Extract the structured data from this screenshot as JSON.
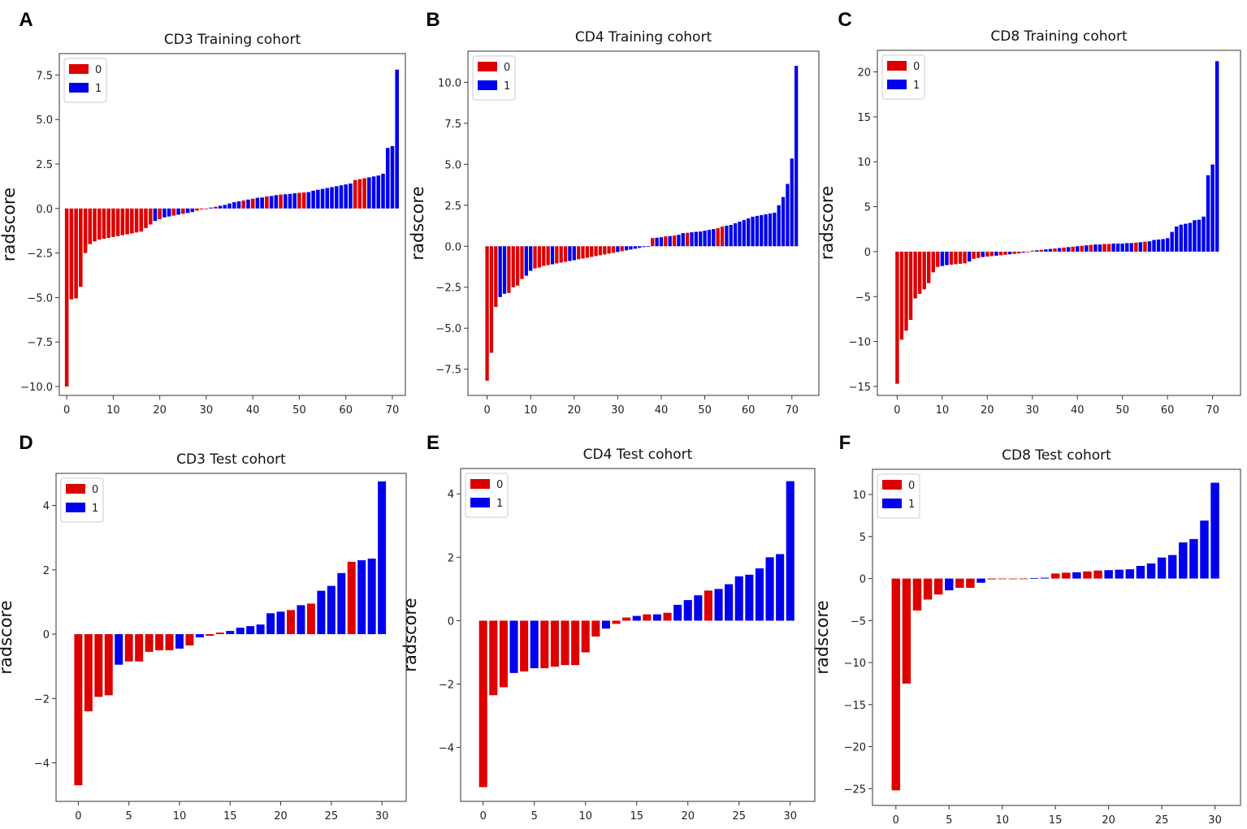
{
  "figure": {
    "colors": {
      "class0": "#dd0000",
      "class1": "#0000ee"
    }
  },
  "chart_data": [
    {
      "panel": "A",
      "type": "bar",
      "title": "CD3 Training cohort",
      "xlabel": "",
      "ylabel": "radscore",
      "ylim": [
        -10.5,
        8.7
      ],
      "xlim": [
        -1.6,
        72.8
      ],
      "yticks": [
        -10.0,
        -7.5,
        -5.0,
        -2.5,
        0.0,
        2.5,
        5.0,
        7.5
      ],
      "ytick_labels": [
        "−10.0",
        "−7.5",
        "−5.0",
        "−2.5",
        "0.0",
        "2.5",
        "5.0",
        "7.5"
      ],
      "xticks": [
        0,
        10,
        20,
        30,
        40,
        50,
        60,
        70
      ],
      "legend": [
        "0",
        "1"
      ],
      "legend_position": "top-left",
      "values": [
        -10.0,
        -5.1,
        -5.05,
        -4.4,
        -2.5,
        -2.0,
        -1.85,
        -1.75,
        -1.7,
        -1.65,
        -1.6,
        -1.55,
        -1.5,
        -1.45,
        -1.4,
        -1.35,
        -1.3,
        -1.1,
        -0.9,
        -0.7,
        -0.6,
        -0.5,
        -0.45,
        -0.4,
        -0.35,
        -0.3,
        -0.25,
        -0.2,
        -0.12,
        -0.05,
        0.0,
        0.05,
        0.1,
        0.15,
        0.2,
        0.28,
        0.35,
        0.4,
        0.45,
        0.5,
        0.55,
        0.6,
        0.62,
        0.68,
        0.7,
        0.75,
        0.78,
        0.8,
        0.82,
        0.85,
        0.88,
        0.9,
        0.92,
        1.0,
        1.05,
        1.1,
        1.15,
        1.2,
        1.25,
        1.3,
        1.35,
        1.4,
        1.6,
        1.65,
        1.7,
        1.75,
        1.8,
        1.85,
        1.95,
        3.4,
        3.5,
        7.8
      ],
      "classes": [
        0,
        0,
        0,
        0,
        0,
        0,
        0,
        0,
        0,
        0,
        0,
        0,
        0,
        0,
        0,
        0,
        0,
        0,
        0,
        1,
        0,
        1,
        1,
        0,
        1,
        0,
        1,
        1,
        0,
        0,
        0,
        1,
        0,
        1,
        1,
        1,
        1,
        1,
        0,
        1,
        0,
        1,
        1,
        0,
        1,
        1,
        0,
        1,
        1,
        1,
        0,
        0,
        1,
        1,
        1,
        1,
        1,
        1,
        1,
        1,
        1,
        1,
        0,
        0,
        0,
        1,
        1,
        1,
        1,
        1,
        1,
        1
      ]
    },
    {
      "panel": "B",
      "type": "bar",
      "title": "CD4 Training cohort",
      "xlabel": "",
      "ylabel": "radscore",
      "ylim": [
        -9.1,
        11.9
      ],
      "xlim": [
        -4.4,
        76.2
      ],
      "yticks": [
        -7.5,
        -5.0,
        -2.5,
        0.0,
        2.5,
        5.0,
        7.5,
        10.0
      ],
      "ytick_labels": [
        "−7.5",
        "−5.0",
        "−2.5",
        "0.0",
        "2.5",
        "5.0",
        "7.5",
        "10.0"
      ],
      "xticks": [
        0,
        10,
        20,
        30,
        40,
        50,
        60,
        70
      ],
      "legend": [
        "0",
        "1"
      ],
      "legend_position": "top-left",
      "values": [
        -8.2,
        -6.5,
        -3.7,
        -3.1,
        -2.9,
        -2.85,
        -2.5,
        -2.4,
        -2.0,
        -1.8,
        -1.5,
        -1.35,
        -1.3,
        -1.2,
        -1.15,
        -1.1,
        -1.05,
        -1.0,
        -0.95,
        -0.9,
        -0.85,
        -0.8,
        -0.75,
        -0.7,
        -0.65,
        -0.6,
        -0.55,
        -0.5,
        -0.45,
        -0.4,
        -0.35,
        -0.3,
        -0.25,
        -0.2,
        -0.15,
        -0.1,
        -0.05,
        0.0,
        0.5,
        0.52,
        0.55,
        0.6,
        0.62,
        0.65,
        0.7,
        0.8,
        0.82,
        0.85,
        0.88,
        0.9,
        0.95,
        1.0,
        1.05,
        1.1,
        1.2,
        1.25,
        1.3,
        1.4,
        1.5,
        1.6,
        1.7,
        1.8,
        1.85,
        1.9,
        1.95,
        2.0,
        2.05,
        2.5,
        3.0,
        3.8,
        5.35,
        11.0
      ],
      "classes": [
        0,
        0,
        0,
        1,
        1,
        0,
        0,
        0,
        0,
        1,
        1,
        0,
        0,
        0,
        0,
        1,
        0,
        0,
        0,
        1,
        1,
        0,
        0,
        0,
        0,
        0,
        0,
        0,
        0,
        0,
        1,
        0,
        1,
        1,
        1,
        1,
        1,
        1,
        0,
        1,
        1,
        0,
        1,
        0,
        1,
        1,
        0,
        1,
        1,
        1,
        1,
        1,
        1,
        0,
        0,
        1,
        1,
        1,
        1,
        1,
        1,
        1,
        1,
        1,
        1,
        1,
        1,
        1,
        1,
        1,
        1,
        1
      ]
    },
    {
      "panel": "C",
      "type": "bar",
      "title": "CD8 Training cohort",
      "xlabel": "",
      "ylabel": "radscore",
      "ylim": [
        -16.0,
        22.4
      ],
      "xlim": [
        -4.4,
        76.2
      ],
      "yticks": [
        -15,
        -10,
        -5,
        0,
        5,
        10,
        15,
        20
      ],
      "ytick_labels": [
        "−15",
        "−10",
        "−5",
        "0",
        "5",
        "10",
        "15",
        "20"
      ],
      "xticks": [
        0,
        10,
        20,
        30,
        40,
        50,
        60,
        70
      ],
      "legend": [
        "0",
        "1"
      ],
      "legend_position": "top-left",
      "values": [
        -14.7,
        -9.8,
        -8.8,
        -7.6,
        -5.2,
        -4.7,
        -4.2,
        -3.5,
        -2.3,
        -1.7,
        -1.6,
        -1.5,
        -1.45,
        -1.4,
        -1.35,
        -1.3,
        -1.1,
        -0.8,
        -0.7,
        -0.6,
        -0.55,
        -0.5,
        -0.45,
        -0.4,
        -0.35,
        -0.3,
        -0.25,
        -0.2,
        -0.1,
        0.0,
        0.1,
        0.15,
        0.2,
        0.25,
        0.3,
        0.35,
        0.4,
        0.45,
        0.5,
        0.55,
        0.6,
        0.65,
        0.7,
        0.75,
        0.8,
        0.8,
        0.85,
        0.85,
        0.9,
        0.9,
        0.9,
        0.95,
        0.95,
        1.0,
        1.05,
        1.1,
        1.15,
        1.3,
        1.35,
        1.4,
        1.5,
        2.2,
        2.8,
        3.0,
        3.1,
        3.2,
        3.5,
        3.55,
        3.9,
        8.5,
        9.7,
        21.2
      ],
      "classes": [
        0,
        0,
        0,
        0,
        0,
        0,
        0,
        0,
        0,
        0,
        1,
        1,
        0,
        0,
        0,
        0,
        1,
        0,
        0,
        1,
        0,
        0,
        1,
        0,
        0,
        1,
        0,
        0,
        1,
        0,
        0,
        1,
        0,
        1,
        1,
        0,
        1,
        0,
        1,
        0,
        1,
        0,
        1,
        0,
        1,
        1,
        0,
        0,
        1,
        1,
        1,
        1,
        1,
        0,
        1,
        0,
        1,
        1,
        1,
        1,
        1,
        1,
        1,
        1,
        1,
        1,
        1,
        1,
        1,
        1,
        1,
        1
      ]
    },
    {
      "panel": "D",
      "type": "bar",
      "title": "CD3 Test cohort",
      "xlabel": "",
      "ylabel": "radscore",
      "ylim": [
        -5.2,
        5.0
      ],
      "xlim": [
        -2.2,
        32.4
      ],
      "yticks": [
        -4,
        -2,
        0,
        2,
        4
      ],
      "ytick_labels": [
        "−4",
        "−2",
        "0",
        "2",
        "4"
      ],
      "xticks": [
        0,
        5,
        10,
        15,
        20,
        25,
        30
      ],
      "legend": [
        "0",
        "1"
      ],
      "legend_position": "top-left",
      "values": [
        -4.7,
        -2.4,
        -1.95,
        -1.9,
        -0.95,
        -0.85,
        -0.85,
        -0.55,
        -0.5,
        -0.5,
        -0.45,
        -0.35,
        -0.1,
        -0.05,
        0.05,
        0.1,
        0.2,
        0.25,
        0.3,
        0.65,
        0.7,
        0.75,
        0.9,
        0.95,
        1.35,
        1.5,
        1.9,
        2.25,
        2.3,
        2.35,
        4.75
      ],
      "classes": [
        0,
        0,
        0,
        0,
        1,
        0,
        0,
        0,
        0,
        0,
        1,
        0,
        1,
        0,
        0,
        1,
        1,
        1,
        1,
        1,
        1,
        0,
        1,
        0,
        1,
        1,
        1,
        0,
        1,
        1,
        1
      ]
    },
    {
      "panel": "E",
      "type": "bar",
      "title": "CD4 Test cohort",
      "xlabel": "",
      "ylabel": "radscore",
      "ylim": [
        -5.7,
        4.8
      ],
      "xlim": [
        -2.2,
        32.4
      ],
      "yticks": [
        -4,
        -2,
        0,
        2,
        4
      ],
      "ytick_labels": [
        "−4",
        "−2",
        "0",
        "2",
        "4"
      ],
      "xticks": [
        0,
        5,
        10,
        15,
        20,
        25,
        30
      ],
      "legend": [
        "0",
        "1"
      ],
      "legend_position": "top-left",
      "values": [
        -5.25,
        -2.35,
        -2.1,
        -1.65,
        -1.6,
        -1.5,
        -1.5,
        -1.45,
        -1.4,
        -1.4,
        -1.0,
        -0.5,
        -0.25,
        -0.1,
        0.1,
        0.15,
        0.2,
        0.2,
        0.25,
        0.5,
        0.65,
        0.8,
        0.95,
        1.0,
        1.15,
        1.4,
        1.45,
        1.65,
        2.0,
        2.1,
        4.4
      ],
      "classes": [
        0,
        0,
        0,
        1,
        0,
        1,
        0,
        0,
        0,
        0,
        0,
        0,
        1,
        0,
        0,
        1,
        0,
        1,
        0,
        1,
        1,
        1,
        0,
        1,
        1,
        1,
        1,
        1,
        1,
        1,
        1
      ]
    },
    {
      "panel": "F",
      "type": "bar",
      "title": "CD8 Test cohort",
      "xlabel": "",
      "ylabel": "radscore",
      "ylim": [
        -27.0,
        13.0
      ],
      "xlim": [
        -2.2,
        32.4
      ],
      "yticks": [
        -25,
        -20,
        -15,
        -10,
        -5,
        0,
        5,
        10
      ],
      "ytick_labels": [
        "−25",
        "−20",
        "−15",
        "−10",
        "−5",
        "0",
        "5",
        "10"
      ],
      "xticks": [
        0,
        5,
        10,
        15,
        20,
        25,
        30
      ],
      "legend": [
        "0",
        "1"
      ],
      "legend_position": "top-left",
      "values": [
        -25.2,
        -12.5,
        -3.8,
        -2.5,
        -1.9,
        -1.4,
        -1.1,
        -1.1,
        -0.5,
        -0.1,
        -0.05,
        0.0,
        0.0,
        0.05,
        0.1,
        0.6,
        0.7,
        0.75,
        0.85,
        0.95,
        1.0,
        1.05,
        1.1,
        1.5,
        1.8,
        2.5,
        2.8,
        4.3,
        4.7,
        6.9,
        11.4
      ],
      "classes": [
        0,
        0,
        0,
        0,
        0,
        1,
        0,
        0,
        1,
        0,
        0,
        0,
        0,
        1,
        1,
        0,
        0,
        1,
        0,
        0,
        1,
        1,
        1,
        1,
        1,
        1,
        1,
        1,
        1,
        1,
        1
      ]
    }
  ]
}
